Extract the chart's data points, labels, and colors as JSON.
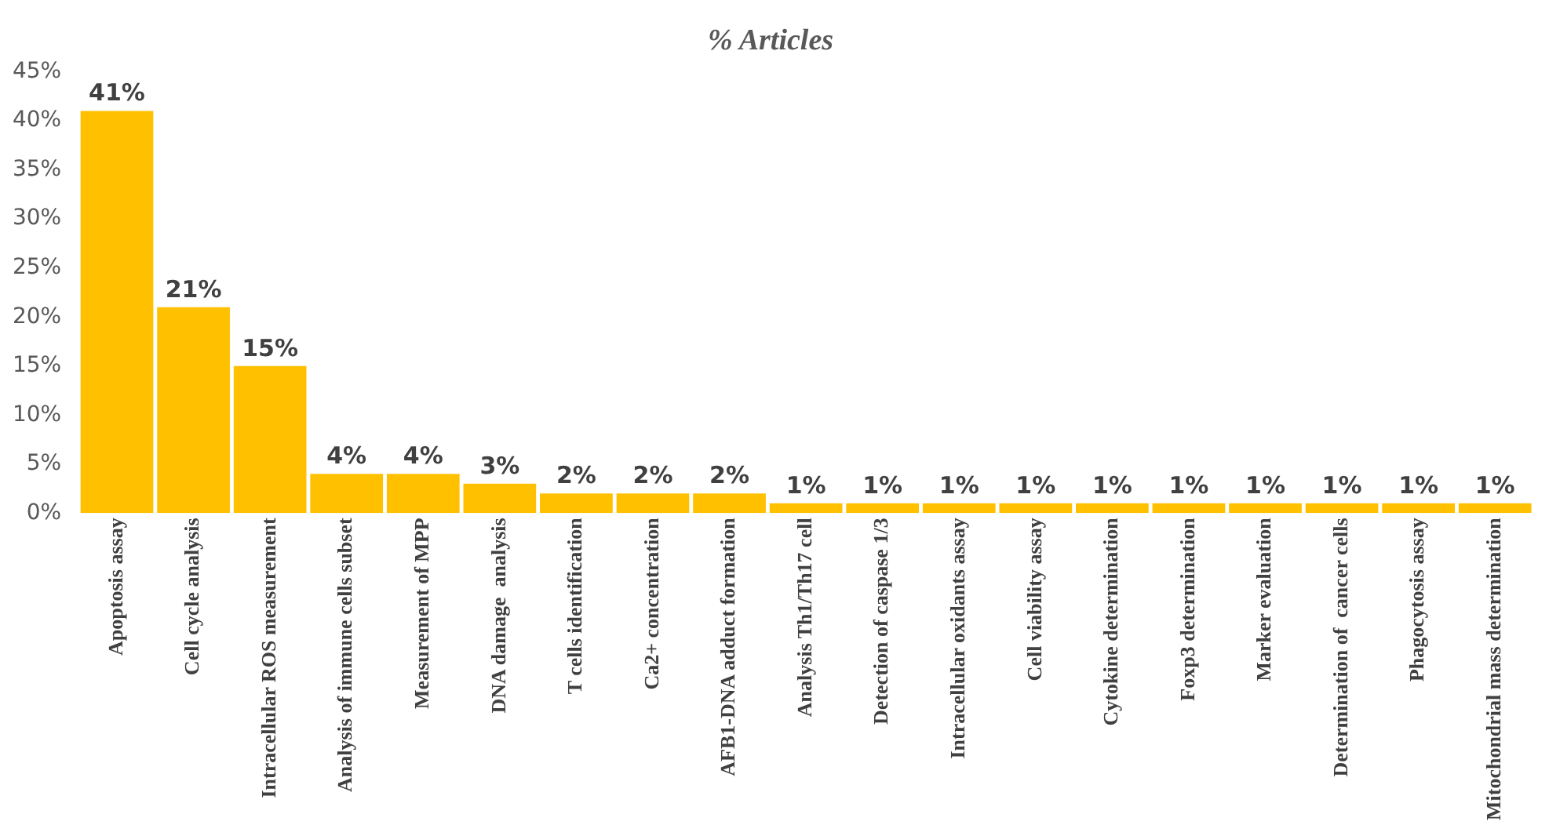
{
  "chart_data": {
    "type": "bar",
    "title": "% Articles",
    "categories": [
      "Apoptosis assay",
      "Cell cycle analysis",
      "Intracellular ROS measurement",
      "Analysis of immune cells subset",
      "Measurement of MPP",
      "DNA damage  analysis",
      "T cells identification",
      "Ca2+ concentration",
      "AFB1-DNA adduct formation",
      "Analysis Th1/Th17 cell",
      "Detection of caspase 1/3",
      "Intracellular oxidants assay",
      "Cell viability assay",
      "Cytokine determination",
      "Foxp3 determination",
      "Marker evaluation",
      "Determination of  cancer cells",
      "Phagocytosis assay",
      "Mitochondrial mass determination"
    ],
    "values": [
      41,
      21,
      15,
      4,
      4,
      3,
      2,
      2,
      2,
      1,
      1,
      1,
      1,
      1,
      1,
      1,
      1,
      1,
      1
    ],
    "value_labels": [
      "41%",
      "21%",
      "15%",
      "4%",
      "4%",
      "3%",
      "2%",
      "2%",
      "2%",
      "1%",
      "1%",
      "1%",
      "1%",
      "1%",
      "1%",
      "1%",
      "1%",
      "1%",
      "1%"
    ],
    "color": "#ffc000",
    "ylim": [
      0,
      45
    ],
    "yticks": [
      {
        "value": 0,
        "label": "0%"
      },
      {
        "value": 5,
        "label": "5%"
      },
      {
        "value": 10,
        "label": "10%"
      },
      {
        "value": 15,
        "label": "15%"
      },
      {
        "value": 20,
        "label": "20%"
      },
      {
        "value": 25,
        "label": "25%"
      },
      {
        "value": 30,
        "label": "30%"
      },
      {
        "value": 35,
        "label": "35%"
      },
      {
        "value": 40,
        "label": "40%"
      },
      {
        "value": 45,
        "label": "45%"
      }
    ],
    "grid": false,
    "legend": false
  }
}
